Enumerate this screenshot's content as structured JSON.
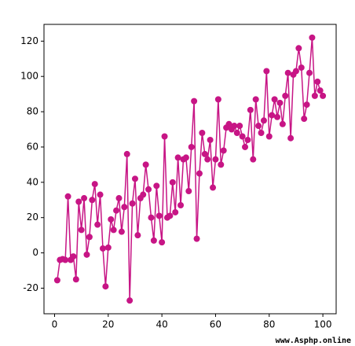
{
  "chart_data": {
    "type": "line",
    "color": "#c71585",
    "x": [
      1,
      2,
      3,
      4,
      5,
      6,
      7,
      8,
      9,
      10,
      11,
      12,
      13,
      14,
      15,
      16,
      17,
      18,
      19,
      20,
      21,
      22,
      23,
      24,
      25,
      26,
      27,
      28,
      29,
      30,
      31,
      32,
      33,
      34,
      35,
      36,
      37,
      38,
      39,
      40,
      41,
      42,
      43,
      44,
      45,
      46,
      47,
      48,
      49,
      50,
      51,
      52,
      53,
      54,
      55,
      56,
      57,
      58,
      59,
      60,
      61,
      62,
      63,
      64,
      65,
      66,
      67,
      68,
      69,
      70,
      71,
      72,
      73,
      74,
      75,
      76,
      77,
      78,
      79,
      80,
      81,
      82,
      83,
      84,
      85,
      86,
      87,
      88,
      89,
      90,
      91,
      92,
      93,
      94,
      95,
      96,
      97,
      98,
      99,
      100
    ],
    "values": [
      -15.5,
      -4,
      -3.5,
      -4,
      32,
      -4,
      -2,
      -15,
      29,
      13,
      31,
      -1,
      9,
      30,
      39,
      16,
      33,
      2.5,
      -19,
      3,
      19,
      13,
      24,
      31,
      12,
      26,
      56,
      -27,
      28,
      42,
      10,
      31,
      33,
      50,
      36,
      20,
      7,
      38,
      21,
      6,
      66,
      20,
      21,
      40,
      23,
      54,
      27,
      53,
      54,
      35,
      60,
      86,
      8,
      45,
      68,
      56,
      53,
      64,
      37,
      53,
      87,
      50,
      58,
      71,
      73,
      70,
      72,
      68,
      72,
      66,
      60,
      64,
      81,
      53,
      87,
      72,
      68,
      75,
      103,
      66,
      78,
      87,
      77,
      85,
      73,
      89,
      102,
      65,
      101,
      103,
      116,
      105,
      76,
      84,
      102,
      122,
      89,
      97,
      92,
      89
    ],
    "xlim": [
      -3.95,
      104.95
    ],
    "ylim": [
      -34.5,
      129.5
    ],
    "xticks": [
      0,
      20,
      40,
      60,
      80,
      100
    ],
    "yticks": [
      -20,
      0,
      20,
      40,
      60,
      80,
      100,
      120
    ],
    "watermark": "www.Asphp.online"
  }
}
